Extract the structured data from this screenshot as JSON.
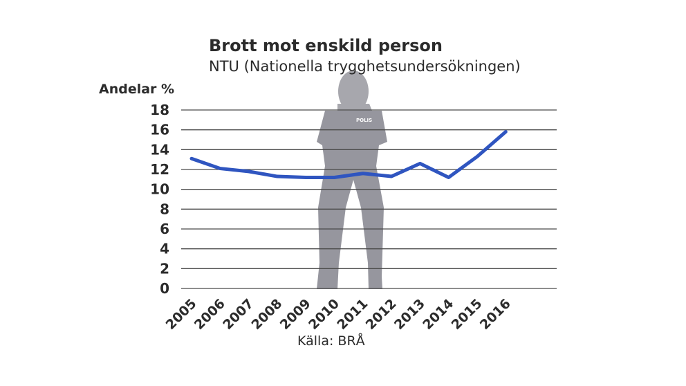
{
  "chart_data": {
    "type": "line",
    "title": "Brott mot enskild person",
    "subtitle": "NTU (Nationella trygghetsundersökningen)",
    "ylabel": "Andelar %",
    "xlabel": "",
    "source": "Källa: BRÅ",
    "ylim": [
      0,
      18
    ],
    "yticks": [
      "0",
      "2",
      "4",
      "6",
      "8",
      "10",
      "12",
      "14",
      "16",
      "18"
    ],
    "categories": [
      "2005",
      "2006",
      "2007",
      "2008",
      "2009",
      "2010",
      "2011",
      "2012",
      "2013",
      "2014",
      "2015",
      "2016"
    ],
    "series": [
      {
        "name": "Brott mot enskild person",
        "values": [
          13.1,
          12.1,
          11.8,
          11.3,
          11.2,
          11.2,
          11.6,
          11.3,
          12.6,
          11.2,
          13.3,
          15.8
        ],
        "color": "#2f55c0"
      }
    ],
    "grid": true,
    "background_image_text": "POLIS"
  }
}
